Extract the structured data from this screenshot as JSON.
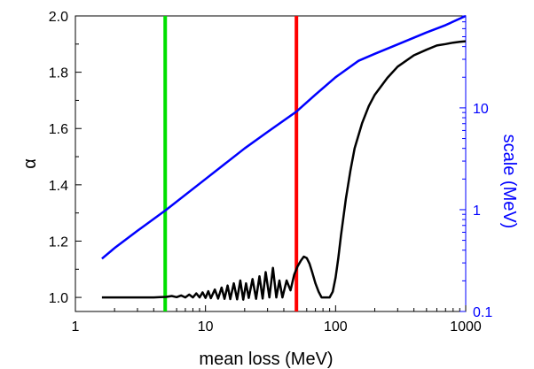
{
  "chart_data": {
    "type": "line",
    "title": "",
    "xlabel": "mean loss (MeV)",
    "ylabel": "α",
    "y2label": "scale (MeV)",
    "x_scale": "log",
    "xlim": [
      1,
      1000
    ],
    "ylim": [
      0.95,
      2.0
    ],
    "y2_scale": "log",
    "y2lim": [
      0.1,
      80
    ],
    "x_ticks": [
      1,
      10,
      100,
      1000
    ],
    "x_tick_labels": [
      "1",
      "10",
      "100",
      "1000"
    ],
    "y_ticks": [
      1.0,
      1.2,
      1.4,
      1.6,
      1.8,
      2.0
    ],
    "y_tick_labels": [
      "1.0",
      "1.2",
      "1.4",
      "1.6",
      "1.8",
      "2.0"
    ],
    "y2_ticks": [
      0.1,
      1,
      10
    ],
    "y2_tick_labels": [
      "0.1",
      "1",
      "10"
    ],
    "grid": false,
    "vertical_lines": [
      {
        "x": 4.9,
        "color": "#00e000"
      },
      {
        "x": 50,
        "color": "#ff0000"
      }
    ],
    "series": [
      {
        "axis": "left",
        "color": "#000000",
        "x": [
          1.6,
          2,
          2.5,
          3,
          3.5,
          4,
          4.5,
          5,
          5.5,
          6,
          6.5,
          7,
          7.5,
          8,
          8.5,
          9,
          9.5,
          10,
          10.5,
          11,
          11.8,
          12.5,
          13.3,
          14,
          14.8,
          15.5,
          16.5,
          17.5,
          18.5,
          19.5,
          20.5,
          21.5,
          23,
          24.5,
          26,
          27.5,
          29,
          31,
          33,
          35,
          37,
          39,
          42,
          45,
          48,
          51,
          54,
          57,
          60,
          63,
          66,
          70,
          74,
          78,
          82,
          86,
          90,
          95,
          100,
          105,
          110,
          120,
          130,
          140,
          160,
          180,
          200,
          250,
          300,
          400,
          500,
          600,
          700,
          800,
          900,
          1000
        ],
        "y": [
          1.0,
          1.0,
          1.0,
          1.0,
          1.0,
          1.0,
          1.001,
          1.002,
          1.005,
          1.001,
          1.007,
          1.0,
          1.01,
          1.0,
          1.014,
          1.0,
          1.018,
          0.998,
          1.022,
          0.997,
          1.028,
          0.996,
          1.035,
          0.995,
          1.042,
          0.994,
          1.05,
          0.993,
          1.06,
          0.992,
          1.05,
          0.998,
          1.065,
          0.995,
          1.075,
          0.996,
          1.09,
          1.0,
          1.105,
          1.0,
          1.06,
          1.0,
          1.06,
          1.025,
          1.08,
          1.11,
          1.13,
          1.145,
          1.14,
          1.12,
          1.09,
          1.05,
          1.02,
          1.0,
          1.0,
          1.0,
          1.0,
          1.02,
          1.07,
          1.14,
          1.22,
          1.35,
          1.45,
          1.53,
          1.62,
          1.68,
          1.72,
          1.78,
          1.82,
          1.86,
          1.88,
          1.895,
          1.9,
          1.905,
          1.908,
          1.91
        ]
      },
      {
        "axis": "right",
        "color": "#0000ff",
        "x": [
          1.6,
          2,
          3,
          5,
          10,
          20,
          30,
          50,
          70,
          100,
          150,
          200,
          300,
          500,
          700,
          1000
        ],
        "y": [
          0.33,
          0.42,
          0.62,
          1.0,
          2.0,
          4.0,
          5.8,
          9.2,
          13.5,
          20,
          29,
          34,
          42,
          55,
          65,
          80
        ]
      }
    ]
  }
}
